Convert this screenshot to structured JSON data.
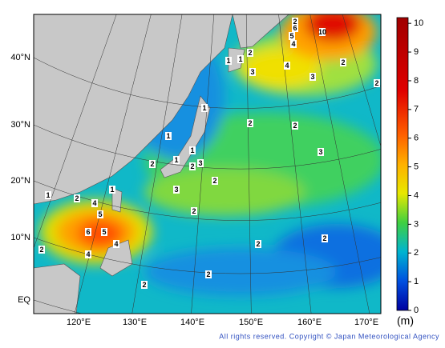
{
  "map": {
    "lat_labels": [
      "40°N",
      "30°N",
      "20°N",
      "10°N",
      "EQ"
    ],
    "lon_labels": [
      "120°E",
      "130°E",
      "140°E",
      "150°E",
      "160°E",
      "170°E"
    ],
    "colorbar": {
      "range": [
        0,
        10.2
      ],
      "ticks": [
        0,
        1,
        2,
        3,
        4,
        5,
        6,
        7,
        8,
        9,
        10
      ],
      "unit": "(m)"
    },
    "contour_labels": [
      1,
      1,
      2,
      3,
      2,
      4,
      5,
      6,
      10,
      4,
      3,
      2,
      2,
      2,
      1,
      1,
      2,
      1,
      3,
      2,
      2,
      3,
      2,
      1,
      2,
      3,
      4,
      5,
      6,
      5,
      4,
      2,
      4,
      1,
      2,
      1,
      2,
      2,
      2,
      2
    ],
    "copyright": "All rights reserved. Copyright © Japan Meteorological Agency"
  }
}
